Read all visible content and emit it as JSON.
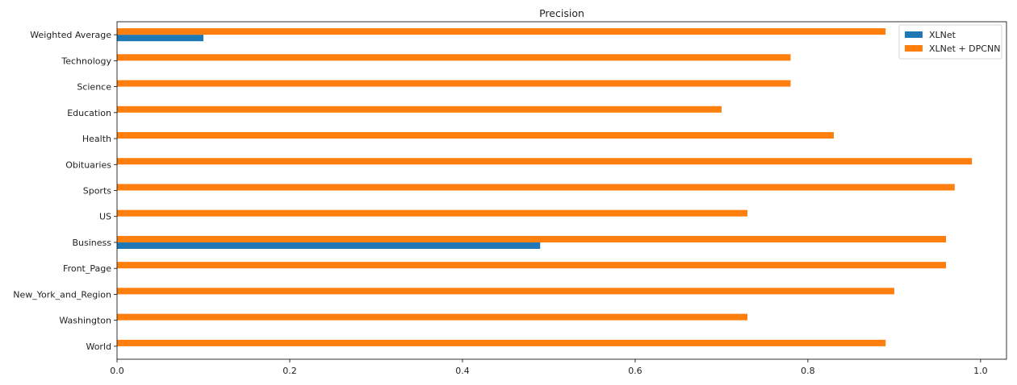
{
  "chart_data": {
    "type": "bar",
    "orientation": "horizontal",
    "title": "Precision",
    "xlabel": "",
    "ylabel": "",
    "xlim": [
      0,
      1.03
    ],
    "xticks": [
      0.0,
      0.2,
      0.4,
      0.6,
      0.8,
      1.0
    ],
    "xtick_labels": [
      "0.0",
      "0.2",
      "0.4",
      "0.6",
      "0.8",
      "1.0"
    ],
    "grid": false,
    "legend_position": "top-right",
    "categories": [
      "World",
      "Washington",
      "New_York_and_Region",
      "Front_Page",
      "Business",
      "US",
      "Sports",
      "Obituaries",
      "Health",
      "Education",
      "Science",
      "Technology",
      "Weighted Average"
    ],
    "series": [
      {
        "name": "XLNet",
        "color": "#1f77b4",
        "values": [
          0,
          0,
          0,
          0,
          0.49,
          0,
          0,
          0,
          0,
          0,
          0,
          0,
          0.1
        ]
      },
      {
        "name": "XLNet + DPCNN",
        "color": "#ff7f0e",
        "values": [
          0.89,
          0.73,
          0.9,
          0.96,
          0.96,
          0.73,
          0.97,
          0.99,
          0.83,
          0.7,
          0.78,
          0.78,
          0.89
        ]
      }
    ]
  }
}
